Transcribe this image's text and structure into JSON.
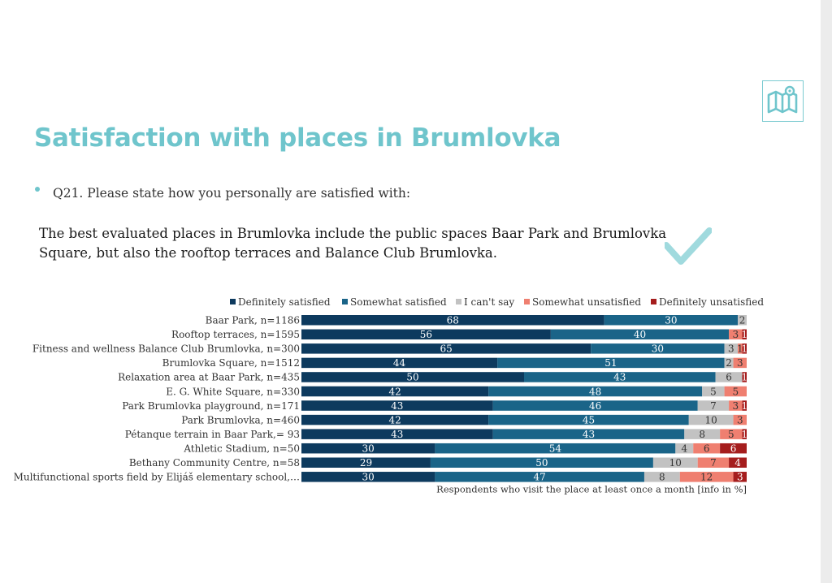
{
  "slide": {
    "title": "Satisfaction with places in Brumlovka",
    "question": "Q21. Please state how you personally are satisfied with:",
    "summary": "The best evaluated places in Brumlovka include the public spaces Baar Park and Brumlovka Square, but also the rooftop terraces and Balance Club Brumlovka.",
    "icons": [
      "map-icon",
      "checkmark-icon"
    ]
  },
  "colors": {
    "accent": "#6fc5cc",
    "definitely_satisfied": "#0d3a5e",
    "somewhat_satisfied": "#1a6488",
    "cant_say": "#c2c2c2",
    "somewhat_unsatisfied": "#ef7f70",
    "definitely_unsatisfied": "#a51d1d"
  },
  "chart_data": {
    "type": "bar",
    "orientation": "horizontal",
    "stacked": true,
    "categories": [
      "Baar Park, n=1186",
      "Rooftop terraces, n=1595",
      "Fitness and wellness Balance Club Brumlovka, n=300",
      "Brumlovka Square, n=1512",
      "Relaxation area at Baar Park, n=435",
      "E. G. White Square, n=330",
      "Park Brumlovka playground, n=171",
      "Park Brumlovka, n=460",
      "Pétanque terrain in Baar Park,= 93",
      "Athletic Stadium, n=50",
      "Bethany Community Centre, n=58",
      "Multifunctional sports field by Elijáš elementary school,…"
    ],
    "series": [
      {
        "name": "Definitely satisfied",
        "color": "#0d3a5e",
        "label_color": "#ffffff",
        "values": [
          68,
          56,
          65,
          44,
          50,
          42,
          43,
          42,
          43,
          30,
          29,
          30
        ]
      },
      {
        "name": "Somewhat satisfied",
        "color": "#1a6488",
        "label_color": "#ffffff",
        "values": [
          30,
          40,
          30,
          51,
          43,
          48,
          46,
          45,
          43,
          54,
          50,
          47
        ]
      },
      {
        "name": "I can't say",
        "color": "#c2c2c2",
        "label_color": "#333333",
        "values": [
          2,
          0,
          3,
          2,
          6,
          5,
          7,
          10,
          8,
          4,
          10,
          8
        ]
      },
      {
        "name": "Somewhat unsatisfied",
        "color": "#ef7f70",
        "label_color": "#333333",
        "values": [
          0,
          3,
          1,
          3,
          0,
          5,
          3,
          3,
          5,
          6,
          7,
          12
        ]
      },
      {
        "name": "Definitely unsatisfied",
        "color": "#a51d1d",
        "label_color": "#ffffff",
        "values": [
          0,
          1,
          1,
          0,
          1,
          0,
          1,
          0,
          1,
          6,
          4,
          3
        ]
      }
    ],
    "legend_position": "top",
    "note": "Respondents who visit the place at least once a month [info in %]",
    "xlim": [
      0,
      100
    ],
    "grid": false
  }
}
